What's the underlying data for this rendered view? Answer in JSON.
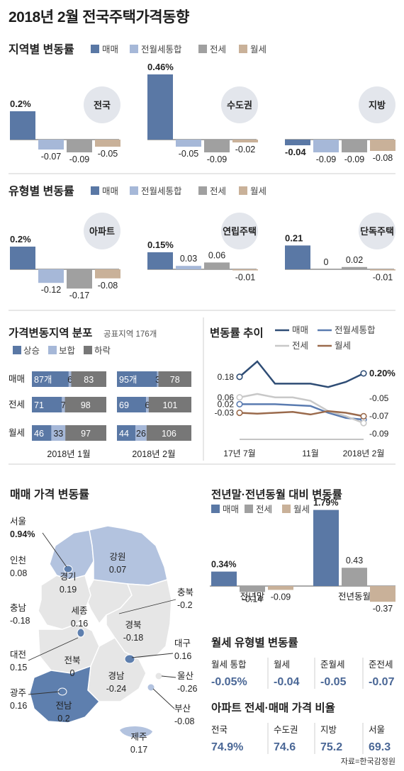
{
  "title": "2018년 2월 전국주택가격동향",
  "source": "자료=한국감정원",
  "colors": {
    "sale": "#5a78a5",
    "integrated": "#a6b8d8",
    "jeonse": "#a0a0a0",
    "wolse": "#c9b199",
    "trend_sale": "#2f4d75",
    "trend_integrated": "#5a7bb0",
    "trend_jeonse": "#c8c8c8",
    "trend_wolse": "#9a6a4c",
    "map_light": "#e6e6e6",
    "map_mid": "#b3c3df",
    "map_dark": "#5e7fae"
  },
  "legend4": [
    "매매",
    "전월세통합",
    "전세",
    "월세"
  ],
  "regional": {
    "heading": "지역별 변동률",
    "groups": [
      {
        "name": "전국",
        "values": [
          "0.2%",
          "-0.07",
          "-0.09",
          "-0.05"
        ]
      },
      {
        "name": "수도권",
        "values": [
          "0.46%",
          "-0.05",
          "-0.09",
          "-0.02"
        ]
      },
      {
        "name": "지방",
        "values": [
          "-0.04",
          "-0.09",
          "-0.09",
          "-0.08"
        ]
      }
    ]
  },
  "type": {
    "heading": "유형별 변동률",
    "groups": [
      {
        "name": "아파트",
        "values": [
          "0.2%",
          "-0.12",
          "-0.17",
          "-0.08"
        ]
      },
      {
        "name": "연립주택",
        "values": [
          "0.15%",
          "0.03",
          "0.06",
          "-0.01"
        ]
      },
      {
        "name": "단독주택",
        "values": [
          "0.21",
          "0",
          "0.02",
          "-0.01"
        ]
      }
    ]
  },
  "dist": {
    "heading": "가격변동지역 분포",
    "sub": "공표지역 176개",
    "legend": [
      "상승",
      "보합",
      "하락"
    ],
    "rows": [
      "매매",
      "전세",
      "월세"
    ],
    "periods": [
      "2018년 1월",
      "2018년 2월"
    ],
    "labels": [
      [
        [
          "87개",
          "6",
          "83"
        ],
        [
          "71",
          "7",
          "98"
        ],
        [
          "46",
          "33",
          "97"
        ]
      ],
      [
        [
          "95개",
          "3",
          "78"
        ],
        [
          "69",
          "6",
          "101"
        ],
        [
          "44",
          "26",
          "106"
        ]
      ]
    ]
  },
  "trend": {
    "heading": "변동률 추이",
    "legend": [
      "매매",
      "전월세통합",
      "전세",
      "월세"
    ],
    "xlabels": [
      "17년 7월",
      "11월",
      "2018년 2월"
    ],
    "left_labels": [
      "0.18",
      "0.06",
      "0.02",
      "-0.03"
    ],
    "right_labels": [
      "0.20%",
      "-0.05",
      "-0.07",
      "-0.09"
    ]
  },
  "map": {
    "heading": "매매 가격 변동률",
    "regions": [
      {
        "name": "서울",
        "value": "0.94%"
      },
      {
        "name": "인천",
        "value": "0.08"
      },
      {
        "name": "경기",
        "value": "0.19"
      },
      {
        "name": "강원",
        "value": "0.07"
      },
      {
        "name": "충북",
        "value": "-0.2"
      },
      {
        "name": "충남",
        "value": "-0.18"
      },
      {
        "name": "세종",
        "value": "0.16"
      },
      {
        "name": "대전",
        "value": "0.15"
      },
      {
        "name": "경북",
        "value": "-0.18"
      },
      {
        "name": "대구",
        "value": "0.16"
      },
      {
        "name": "전북",
        "value": "0"
      },
      {
        "name": "경남",
        "value": "-0.24"
      },
      {
        "name": "울산",
        "value": "-0.26"
      },
      {
        "name": "광주",
        "value": "0.16"
      },
      {
        "name": "전남",
        "value": "0.2"
      },
      {
        "name": "부산",
        "value": "-0.08"
      },
      {
        "name": "제주",
        "value": "0.17"
      }
    ]
  },
  "yoy": {
    "heading": "전년말·전년동월 대비 변동률",
    "legend": [
      "매매",
      "전세",
      "월세"
    ],
    "groups": [
      {
        "name": "전년말",
        "values": [
          "0.34%",
          "-0.14",
          "-0.09"
        ]
      },
      {
        "name": "전년동월",
        "values": [
          "1.79%",
          "0.43",
          "-0.37"
        ]
      }
    ]
  },
  "wolse_type": {
    "heading": "월세 유형별 변동률",
    "items": [
      {
        "label": "월세 통합",
        "value": "-0.05%"
      },
      {
        "label": "월세",
        "value": "-0.04"
      },
      {
        "label": "준월세",
        "value": "-0.05"
      },
      {
        "label": "준전세",
        "value": "-0.07"
      }
    ]
  },
  "ratio": {
    "heading": "아파트 전세·매매 가격 비율",
    "items": [
      {
        "label": "전국",
        "value": "74.9%"
      },
      {
        "label": "수도권",
        "value": "74.6"
      },
      {
        "label": "지방",
        "value": "75.2"
      },
      {
        "label": "서울",
        "value": "69.3"
      }
    ]
  },
  "chart_data": [
    {
      "type": "bar",
      "title": "지역별 변동률",
      "categories": [
        "전국",
        "수도권",
        "지방"
      ],
      "series": [
        {
          "name": "매매",
          "values": [
            0.2,
            0.46,
            -0.04
          ]
        },
        {
          "name": "전월세통합",
          "values": [
            -0.07,
            -0.05,
            -0.09
          ]
        },
        {
          "name": "전세",
          "values": [
            -0.09,
            -0.09,
            -0.09
          ]
        },
        {
          "name": "월세",
          "values": [
            -0.05,
            -0.02,
            -0.08
          ]
        }
      ]
    },
    {
      "type": "bar",
      "title": "유형별 변동률",
      "categories": [
        "아파트",
        "연립주택",
        "단독주택"
      ],
      "series": [
        {
          "name": "매매",
          "values": [
            0.2,
            0.15,
            0.21
          ]
        },
        {
          "name": "전월세통합",
          "values": [
            -0.12,
            0.03,
            0
          ]
        },
        {
          "name": "전세",
          "values": [
            -0.17,
            0.06,
            0.02
          ]
        },
        {
          "name": "월세",
          "values": [
            -0.08,
            -0.01,
            -0.01
          ]
        }
      ]
    },
    {
      "type": "bar",
      "title": "가격변동지역 분포",
      "subtitle": "공표지역 176개",
      "stacked": true,
      "categories": [
        "2018년 1월 매매",
        "2018년 1월 전세",
        "2018년 1월 월세",
        "2018년 2월 매매",
        "2018년 2월 전세",
        "2018년 2월 월세"
      ],
      "series": [
        {
          "name": "상승",
          "values": [
            87,
            71,
            46,
            95,
            69,
            44
          ]
        },
        {
          "name": "보합",
          "values": [
            6,
            7,
            33,
            3,
            6,
            26
          ]
        },
        {
          "name": "하락",
          "values": [
            83,
            98,
            97,
            78,
            101,
            106
          ]
        }
      ]
    },
    {
      "type": "line",
      "title": "변동률 추이",
      "x": [
        "17년 7월",
        "",
        "",
        "",
        "11월",
        "",
        "",
        "2018년 2월"
      ],
      "series": [
        {
          "name": "매매",
          "values": [
            0.18,
            0.27,
            0.14,
            0.14,
            0.14,
            0.12,
            0.15,
            0.2
          ]
        },
        {
          "name": "전월세통합",
          "values": [
            0.02,
            0.02,
            0.02,
            0.015,
            0.01,
            -0.03,
            -0.06,
            -0.07
          ]
        },
        {
          "name": "전세",
          "values": [
            0.06,
            0.08,
            0.06,
            0.06,
            0.04,
            -0.02,
            -0.05,
            -0.09
          ]
        },
        {
          "name": "월세",
          "values": [
            -0.03,
            -0.035,
            -0.03,
            -0.025,
            -0.04,
            -0.02,
            -0.03,
            -0.05
          ]
        }
      ]
    },
    {
      "type": "bar",
      "title": "전년말·전년동월 대비 변동률",
      "categories": [
        "전년말",
        "전년동월"
      ],
      "series": [
        {
          "name": "매매",
          "values": [
            0.34,
            1.79
          ]
        },
        {
          "name": "전세",
          "values": [
            -0.14,
            0.43
          ]
        },
        {
          "name": "월세",
          "values": [
            -0.09,
            -0.37
          ]
        }
      ]
    }
  ]
}
